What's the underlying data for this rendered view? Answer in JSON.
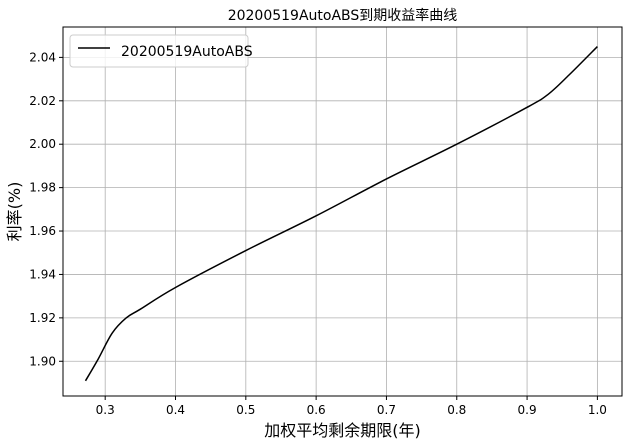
{
  "chart_data": {
    "type": "line",
    "title": "20200519AutoABS到期收益率曲线",
    "xlabel": "加权平均剩余期限(年)",
    "ylabel": "利率(%)",
    "xlim": [
      0.24,
      1.035
    ],
    "ylim": [
      1.884,
      2.054
    ],
    "xticks": [
      0.3,
      0.4,
      0.5,
      0.6,
      0.7,
      0.8,
      0.9,
      1.0
    ],
    "xtick_labels": [
      "0.3",
      "0.4",
      "0.5",
      "0.6",
      "0.7",
      "0.8",
      "0.9",
      "1.0"
    ],
    "yticks": [
      1.9,
      1.92,
      1.94,
      1.96,
      1.98,
      2.0,
      2.02,
      2.04
    ],
    "ytick_labels": [
      "1.90",
      "1.92",
      "1.94",
      "1.96",
      "1.98",
      "2.00",
      "2.02",
      "2.04"
    ],
    "grid": true,
    "legend_position": "top-left",
    "series": [
      {
        "name": "20200519AutoABS",
        "color": "#000000",
        "x": [
          0.272,
          0.29,
          0.31,
          0.33,
          0.35,
          0.4,
          0.5,
          0.6,
          0.7,
          0.8,
          0.9,
          0.93,
          0.96,
          1.0
        ],
        "y": [
          1.891,
          1.901,
          1.913,
          1.92,
          1.924,
          1.934,
          1.951,
          1.967,
          1.984,
          2.0,
          2.017,
          2.023,
          2.032,
          2.045
        ]
      }
    ]
  }
}
